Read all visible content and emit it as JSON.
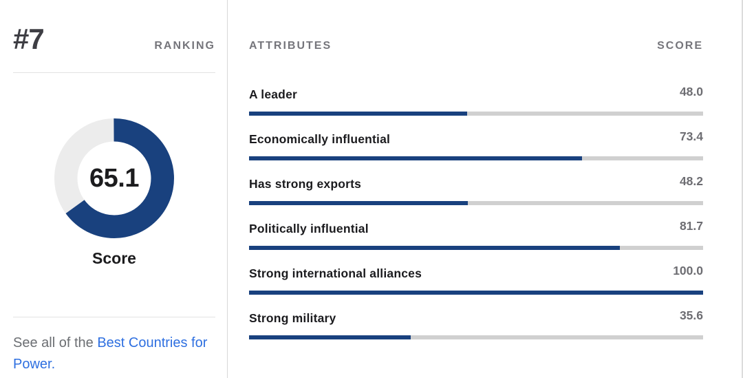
{
  "left_panel": {
    "rank": "#7",
    "rank_label": "RANKING",
    "score_value": "65.1",
    "score_label": "Score",
    "see_all_prefix": "See all of the ",
    "see_all_link_text": "Best Countries for Power."
  },
  "attributes_table": {
    "header_attributes": "ATTRIBUTES",
    "header_score": "SCORE",
    "rows": [
      {
        "label": "A leader",
        "score": "48.0",
        "value": 48.0
      },
      {
        "label": "Economically influential",
        "score": "73.4",
        "value": 73.4
      },
      {
        "label": "Has strong exports",
        "score": "48.2",
        "value": 48.2
      },
      {
        "label": "Politically influential",
        "score": "81.7",
        "value": 81.7
      },
      {
        "label": "Strong international alliances",
        "score": "100.0",
        "value": 100.0
      },
      {
        "label": "Strong military",
        "score": "35.6",
        "value": 35.6
      }
    ]
  },
  "chart_data": [
    {
      "type": "donut",
      "title": "Score",
      "value": 65.1,
      "range": [
        0,
        100
      ],
      "start": "top",
      "direction": "clockwise",
      "fill_color": "#19417e",
      "track_color": "#ececec"
    },
    {
      "type": "bar",
      "orientation": "horizontal",
      "title": "ATTRIBUTES",
      "xlabel": "SCORE",
      "categories": [
        "A leader",
        "Economically influential",
        "Has strong exports",
        "Politically influential",
        "Strong international alliances",
        "Strong military"
      ],
      "values": [
        48.0,
        73.4,
        48.2,
        81.7,
        100.0,
        35.6
      ],
      "xlim": [
        0,
        100
      ],
      "grid": false,
      "legend": "none",
      "bar_color": "#19417e",
      "track_color": "#d0d0d0"
    }
  ],
  "colors": {
    "accent_navy": "#19417e",
    "bar_track": "#d0d0d0",
    "donut_track": "#ececec",
    "link_blue": "#2e6fe0",
    "muted_text": "#6d6d72",
    "header_gray": "#75757b",
    "dark_text": "#1b1b1e",
    "divider": "#e2e2e2"
  }
}
